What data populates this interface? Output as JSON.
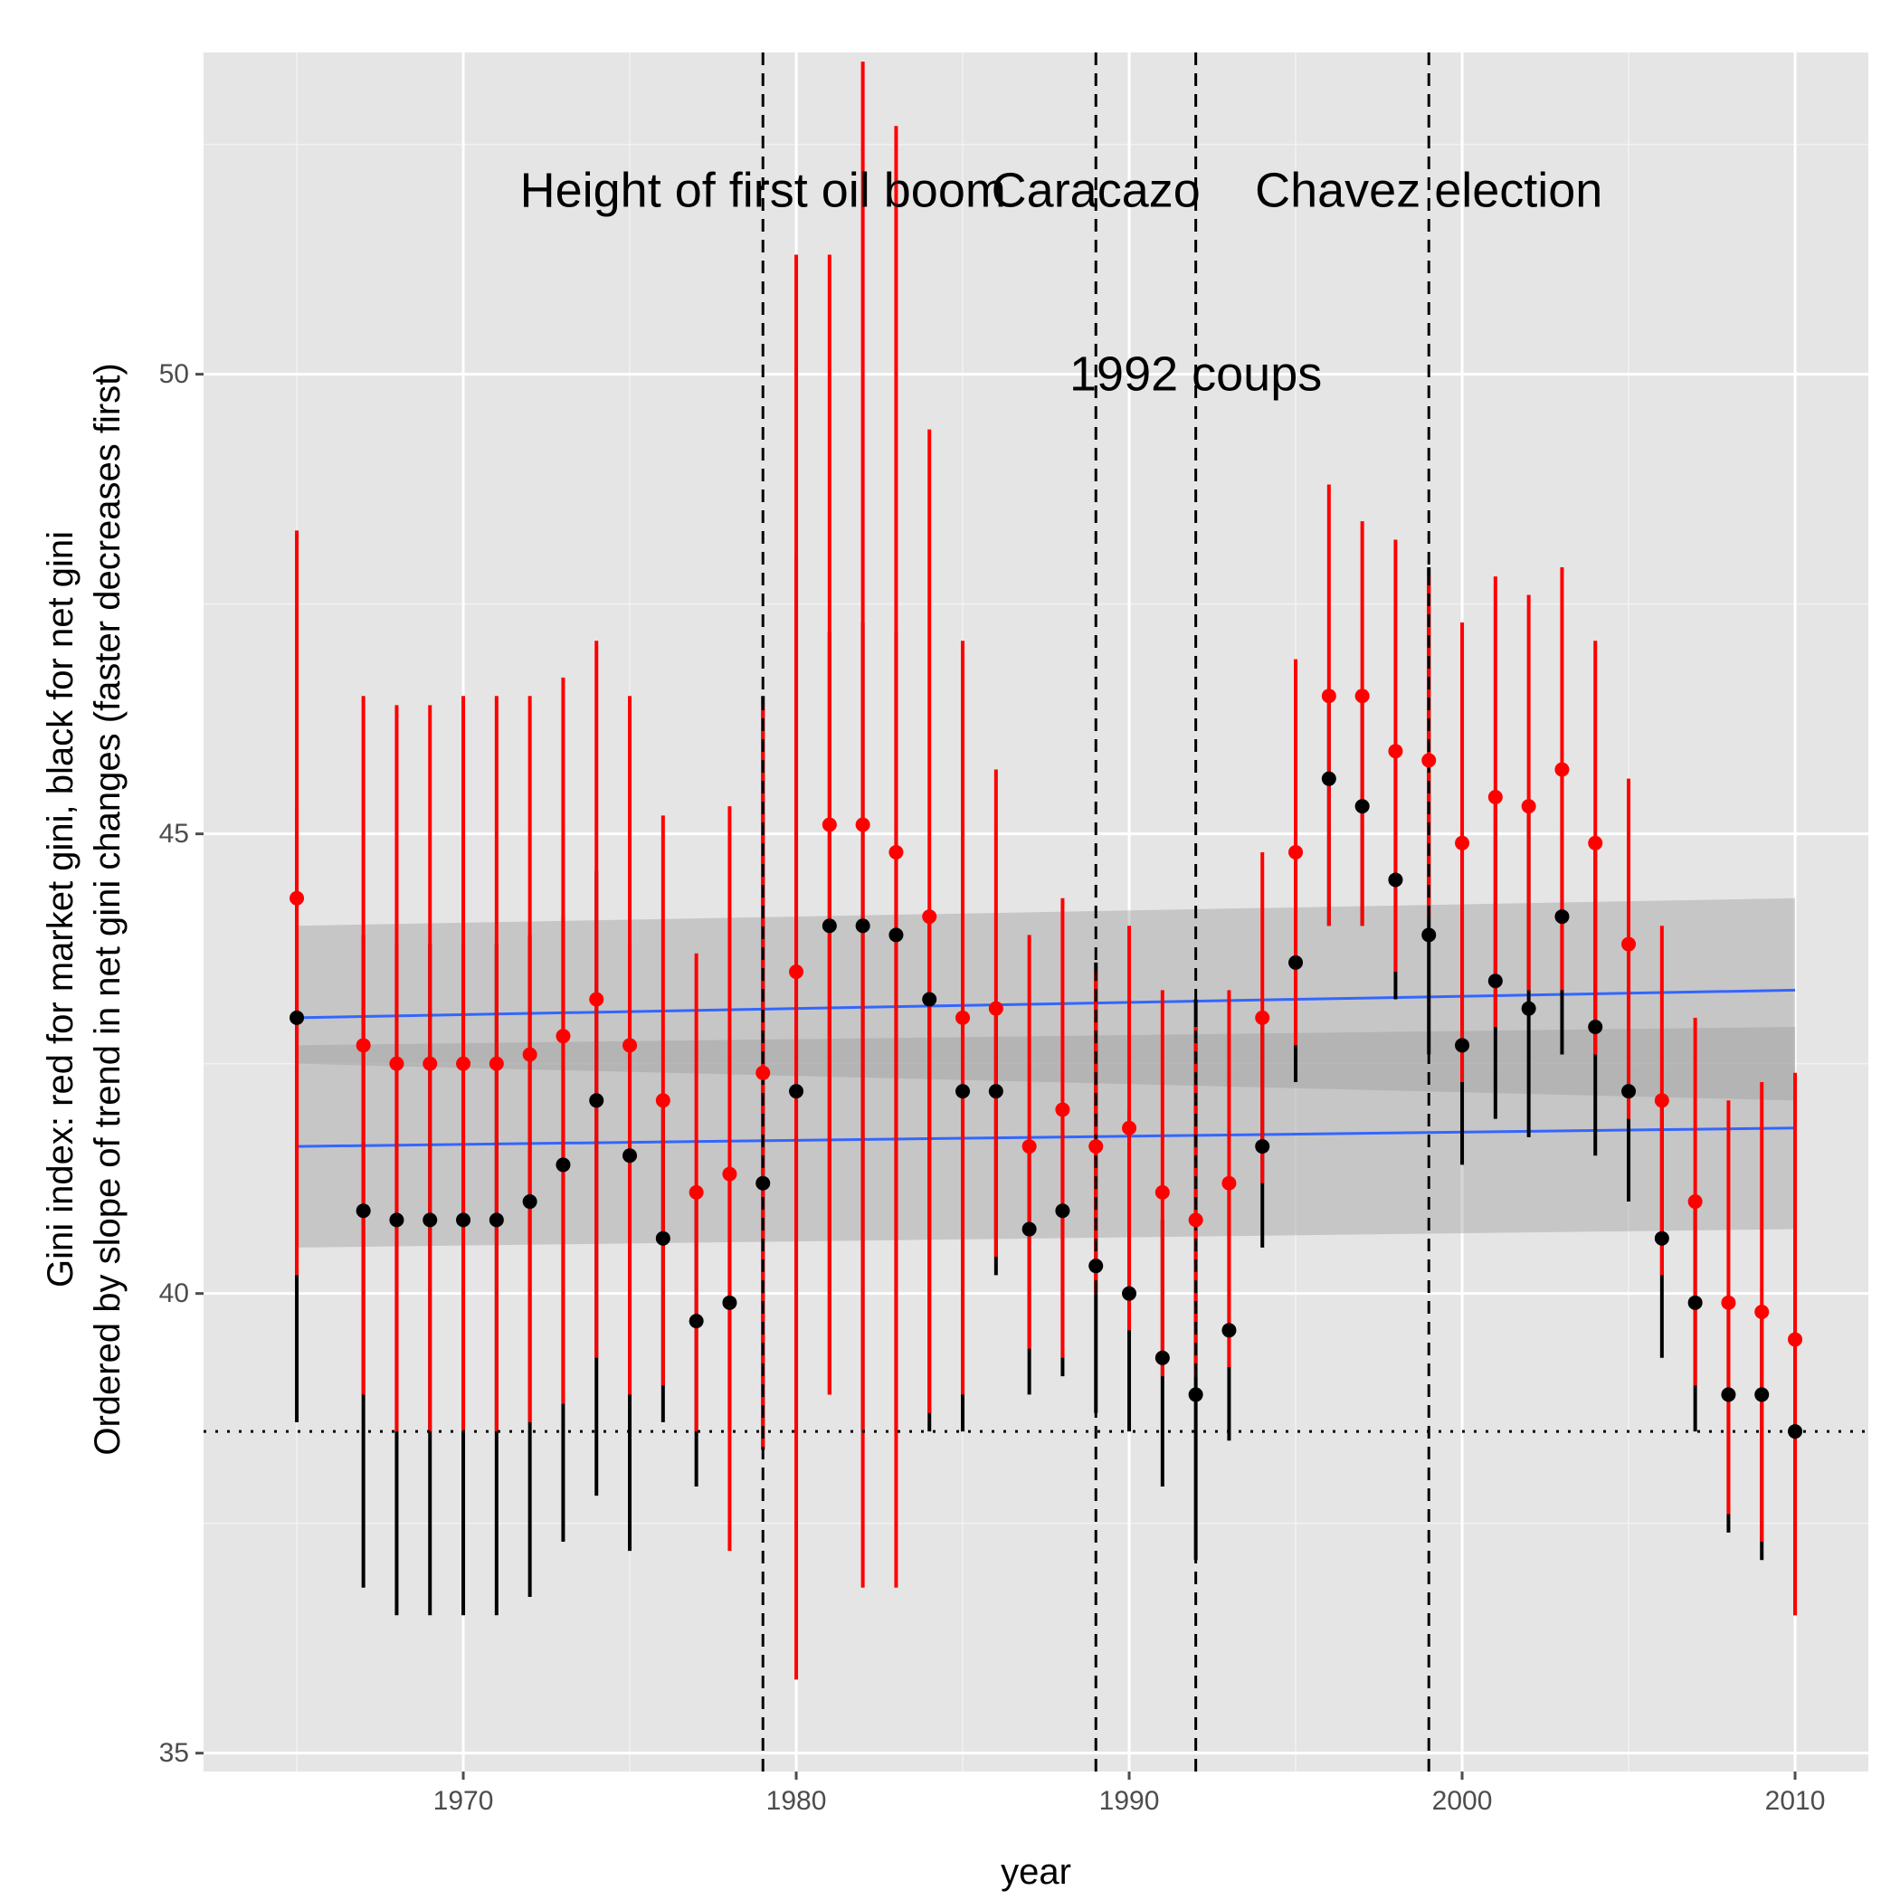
{
  "chart_data": {
    "type": "scatter",
    "xlabel": "year",
    "ylabel": "Gini index: red for market gini, black for net gini",
    "ylabel_line2": "Ordered by slope of trend in net gini changes (faster decreases first)",
    "xlim": [
      1962.2,
      2012.2
    ],
    "ylim": [
      34.8,
      53.5
    ],
    "x_ticks": [
      1970,
      1980,
      1990,
      2000,
      2010
    ],
    "y_ticks": [
      35,
      40,
      45,
      50
    ],
    "grid": true,
    "horizontal_reference_line": 38.5,
    "events": [
      {
        "year": 1979,
        "label": "Height of first oil boom",
        "label_y": 52
      },
      {
        "year": 1989,
        "label": "Caracazo",
        "label_y": 52
      },
      {
        "year": 1992,
        "label": "1992 coups",
        "label_y": 50
      },
      {
        "year": 1999,
        "label": "Chavez election",
        "label_y": 52
      }
    ],
    "market_gini": {
      "color": "#ff0000",
      "x": [
        1965,
        1967,
        1968,
        1969,
        1970,
        1971,
        1972,
        1973,
        1974,
        1975,
        1976,
        1977,
        1978,
        1979,
        1980,
        1981,
        1982,
        1983,
        1984,
        1985,
        1986,
        1987,
        1988,
        1989,
        1990,
        1991,
        1992,
        1993,
        1994,
        1995,
        1996,
        1997,
        1998,
        1999,
        2000,
        2001,
        2002,
        2003,
        2004,
        2005,
        2006,
        2007,
        2008,
        2009,
        2010
      ],
      "y": [
        44.3,
        42.7,
        42.5,
        42.5,
        42.5,
        42.5,
        42.6,
        42.8,
        43.2,
        42.7,
        42.1,
        41.1,
        41.3,
        42.4,
        43.5,
        45.1,
        45.1,
        44.8,
        44.1,
        43.0,
        43.1,
        41.6,
        42.0,
        41.6,
        41.8,
        41.1,
        40.8,
        41.2,
        43.0,
        44.8,
        46.5,
        46.5,
        45.9,
        45.8,
        44.9,
        45.4,
        45.3,
        45.7,
        44.9,
        43.8,
        42.1,
        41.0,
        39.9,
        39.8,
        39.5
      ],
      "ci_low": [
        40.2,
        38.9,
        38.5,
        38.5,
        38.5,
        38.5,
        38.6,
        38.8,
        39.3,
        38.9,
        39.0,
        38.5,
        37.2,
        38.3,
        35.8,
        38.9,
        36.8,
        36.8,
        38.7,
        38.9,
        40.4,
        39.4,
        39.3,
        40.0,
        39.6,
        39.1,
        39.1,
        39.2,
        41.2,
        42.7,
        44.0,
        44.0,
        43.5,
        44.1,
        42.3,
        42.9,
        43.3,
        43.3,
        42.6,
        41.9,
        40.2,
        39.0,
        37.6,
        37.3,
        36.5
      ],
      "ci_high": [
        48.3,
        46.5,
        46.4,
        46.4,
        46.5,
        46.5,
        46.5,
        46.7,
        47.1,
        46.5,
        45.2,
        43.7,
        45.3,
        46.4,
        51.3,
        51.3,
        53.4,
        52.7,
        49.4,
        47.1,
        45.7,
        43.9,
        44.3,
        43.5,
        44.0,
        43.3,
        42.9,
        43.3,
        44.8,
        46.9,
        48.8,
        48.4,
        48.2,
        47.8,
        47.3,
        47.8,
        47.6,
        47.9,
        47.1,
        45.6,
        44.0,
        43.0,
        42.1,
        42.3,
        42.4
      ]
    },
    "net_gini": {
      "color": "#000000",
      "x": [
        1965,
        1967,
        1968,
        1969,
        1970,
        1971,
        1972,
        1973,
        1974,
        1975,
        1976,
        1977,
        1978,
        1979,
        1980,
        1981,
        1982,
        1983,
        1984,
        1985,
        1986,
        1987,
        1988,
        1989,
        1990,
        1991,
        1992,
        1993,
        1994,
        1995,
        1996,
        1997,
        1998,
        1999,
        2000,
        2001,
        2002,
        2003,
        2004,
        2005,
        2006,
        2007,
        2008,
        2009,
        2010
      ],
      "y": [
        43.0,
        40.9,
        40.8,
        40.8,
        40.8,
        40.8,
        41.0,
        41.4,
        42.1,
        41.5,
        40.6,
        39.7,
        39.9,
        41.2,
        42.2,
        44.0,
        44.0,
        43.9,
        43.2,
        42.2,
        42.2,
        40.7,
        40.9,
        40.3,
        40.0,
        39.3,
        38.9,
        39.6,
        41.6,
        43.6,
        45.6,
        45.3,
        44.5,
        43.9,
        42.7,
        43.4,
        43.1,
        44.1,
        42.9,
        42.2,
        40.6,
        39.9,
        38.9,
        38.9,
        38.5
      ],
      "ci_low": [
        38.6,
        36.8,
        36.5,
        36.5,
        36.5,
        36.5,
        36.7,
        37.3,
        37.8,
        37.2,
        38.6,
        37.9,
        38.5,
        38.3,
        38.5,
        38.9,
        38.5,
        38.5,
        38.5,
        38.5,
        40.2,
        38.9,
        39.1,
        38.7,
        38.5,
        37.9,
        37.1,
        38.4,
        40.5,
        42.3,
        44.0,
        44.0,
        43.2,
        42.6,
        41.4,
        41.9,
        41.7,
        42.6,
        41.5,
        41.0,
        39.3,
        38.5,
        37.4,
        37.1,
        36.5
      ],
      "ci_high": [
        45.3,
        43.9,
        43.8,
        43.8,
        43.8,
        43.8,
        43.9,
        44.1,
        44.6,
        43.8,
        42.1,
        41.1,
        41.3,
        46.5,
        48.0,
        47.2,
        47.3,
        47.2,
        44.1,
        43.0,
        43.1,
        41.6,
        42.0,
        43.6,
        42.0,
        40.8,
        43.2,
        41.2,
        43.0,
        44.8,
        46.5,
        46.5,
        45.9,
        47.9,
        44.9,
        45.4,
        45.3,
        45.7,
        44.9,
        43.8,
        42.1,
        41.0,
        39.9,
        39.8,
        39.5
      ]
    },
    "trend_lines": [
      {
        "series": "market_gini",
        "color": "#3366ff",
        "x": [
          1965,
          2010
        ],
        "y": [
          43.0,
          43.3
        ],
        "band_low": [
          42.5,
          42.1
        ],
        "band_high": [
          44.0,
          44.3
        ]
      },
      {
        "series": "net_gini",
        "color": "#3366ff",
        "x": [
          1965,
          2010
        ],
        "y": [
          41.6,
          41.8
        ],
        "band_low": [
          40.5,
          40.7
        ],
        "band_high": [
          42.7,
          42.9
        ]
      }
    ]
  }
}
